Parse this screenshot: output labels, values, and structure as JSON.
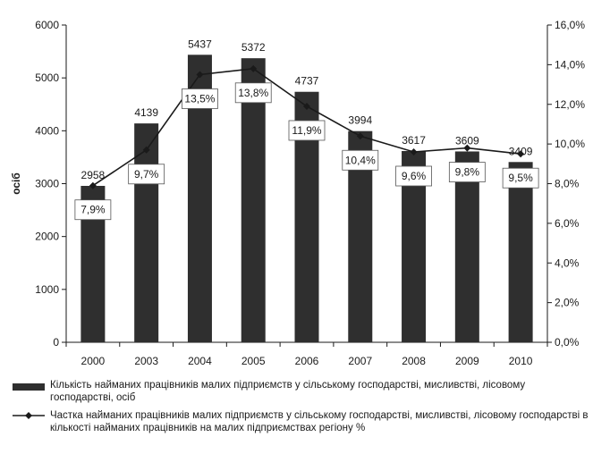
{
  "chart_data": {
    "type": "bar",
    "categories": [
      "2000",
      "2003",
      "2004",
      "2005",
      "2006",
      "2007",
      "2008",
      "2009",
      "2010"
    ],
    "series": [
      {
        "name": "Кількість найманих працівників малих підприємств у сільському господарстві, мисливстві, лісовому господарстві, осіб",
        "type": "bar",
        "axis": "left",
        "values": [
          2958,
          4139,
          5437,
          5372,
          4737,
          3994,
          3617,
          3609,
          3409
        ],
        "value_labels": [
          "2958",
          "4139",
          "5437",
          "5372",
          "4737",
          "3994",
          "3617",
          "3609",
          "3409"
        ]
      },
      {
        "name": "Частка найманих працівників малих підприємств у сільському господарстві, мисливстві, лісовому господарстві в кількості найманих працівників на малих підприємствах регіону %",
        "type": "line",
        "axis": "right",
        "values": [
          7.9,
          9.7,
          13.5,
          13.8,
          11.9,
          10.4,
          9.6,
          9.8,
          9.5
        ],
        "value_labels": [
          "7,9%",
          "9,7%",
          "13,5%",
          "13,8%",
          "11,9%",
          "10,4%",
          "9,6%",
          "9,8%",
          "9,5%"
        ]
      }
    ],
    "ylabel": "осіб",
    "ylim": [
      0,
      6000
    ],
    "yticks": [
      "0",
      "1000",
      "2000",
      "3000",
      "4000",
      "5000",
      "6000"
    ],
    "y2lim": [
      0,
      16
    ],
    "y2ticks": [
      "0,0%",
      "2,0%",
      "4,0%",
      "6,0%",
      "8,0%",
      "10,0%",
      "12,0%",
      "14,0%",
      "16,0%"
    ],
    "grid": false,
    "legend_position": "bottom",
    "colors": {
      "bar": "#2f2f2f",
      "line": "#1a1a1a",
      "text": "#1a1a1a"
    }
  },
  "legend": {
    "bar_text": "Кількість найманих працівників малих підприємств у сільському господарстві, мисливстві, лісовому господарстві, осіб",
    "line_text": "Частка найманих працівників малих підприємств у сільському господарстві, мисливстві, лісовому господарстві в кількості найманих працівників на малих підприємствах регіону %"
  }
}
